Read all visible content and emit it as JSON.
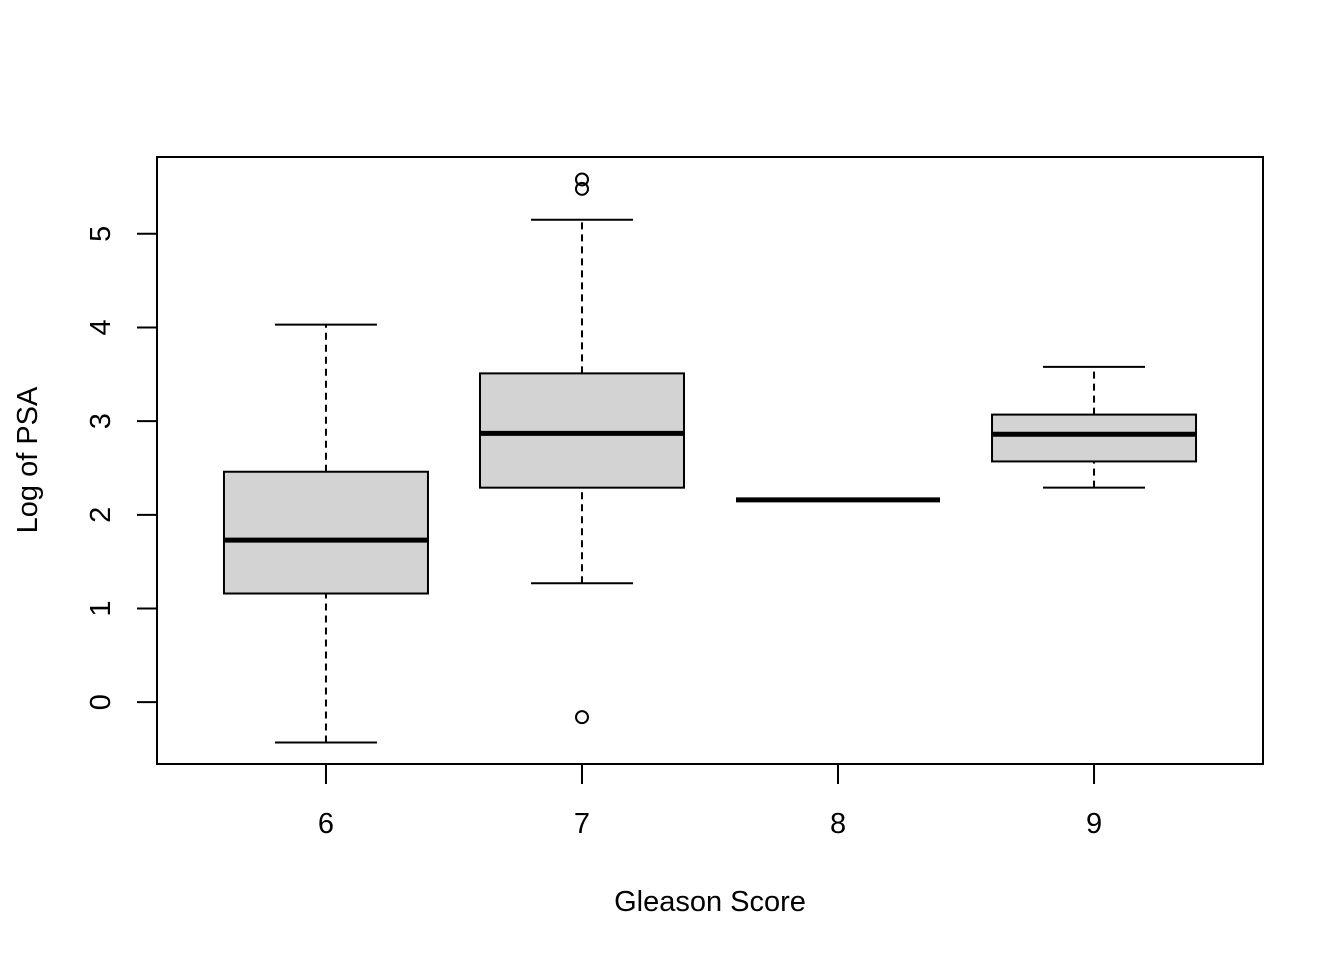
{
  "chart_data": {
    "type": "boxplot",
    "title": "",
    "xlabel": "Gleason Score",
    "ylabel": "Log of PSA",
    "categories": [
      "6",
      "7",
      "8",
      "9"
    ],
    "boxes": [
      {
        "category": "6",
        "whisker_low": -0.43,
        "q1": 1.16,
        "median": 1.73,
        "q3": 2.46,
        "whisker_high": 4.03,
        "outliers": []
      },
      {
        "category": "7",
        "whisker_low": 1.27,
        "q1": 2.29,
        "median": 2.87,
        "q3": 3.51,
        "whisker_high": 5.15,
        "outliers": [
          -0.16,
          5.48,
          5.58
        ]
      },
      {
        "category": "8",
        "whisker_low": 2.16,
        "q1": 2.16,
        "median": 2.16,
        "q3": 2.16,
        "whisker_high": 2.16,
        "outliers": []
      },
      {
        "category": "9",
        "whisker_low": 2.29,
        "q1": 2.57,
        "median": 2.86,
        "q3": 3.07,
        "whisker_high": 3.58,
        "outliers": []
      }
    ],
    "yticks": [
      "0",
      "1",
      "2",
      "3",
      "4",
      "5"
    ],
    "ylim": [
      -0.66,
      5.82
    ],
    "xlim": [
      0.34,
      4.66
    ],
    "box_fill": "#d3d3d3",
    "line_color": "#000000",
    "grid": false,
    "legend": "none"
  }
}
